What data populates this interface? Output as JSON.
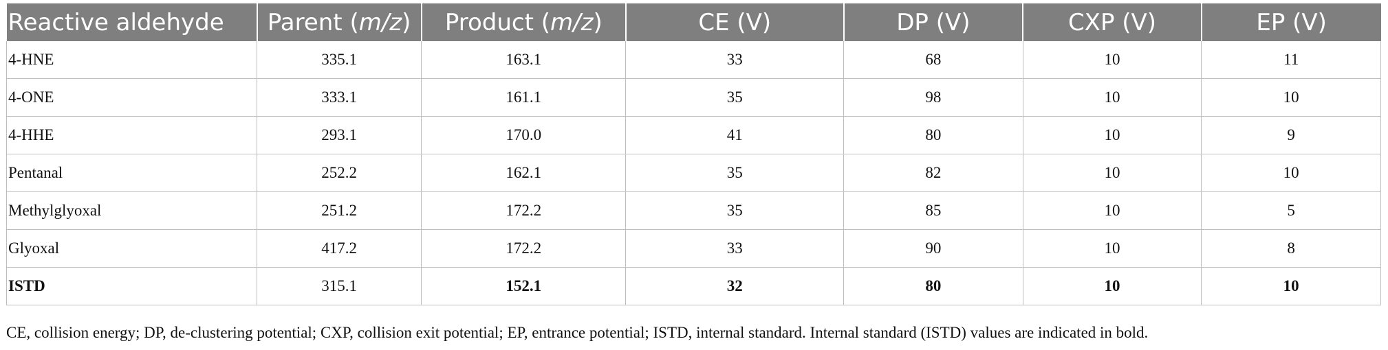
{
  "table": {
    "headers": [
      {
        "pre": "Reactive aldehyde",
        "ital": "",
        "post": ""
      },
      {
        "pre": "Parent (",
        "ital": "m/z",
        "post": ")"
      },
      {
        "pre": "Product (",
        "ital": "m/z",
        "post": ")"
      },
      {
        "pre": "CE (V)",
        "ital": "",
        "post": ""
      },
      {
        "pre": "DP (V)",
        "ital": "",
        "post": ""
      },
      {
        "pre": "CXP (V)",
        "ital": "",
        "post": ""
      },
      {
        "pre": "EP (V)",
        "ital": "",
        "post": ""
      }
    ],
    "rows": [
      [
        "4-HNE",
        "335.1",
        "163.1",
        "33",
        "68",
        "10",
        "11"
      ],
      [
        "4-ONE",
        "333.1",
        "161.1",
        "35",
        "98",
        "10",
        "10"
      ],
      [
        "4-HHE",
        "293.1",
        "170.0",
        "41",
        "80",
        "10",
        "9"
      ],
      [
        "Pentanal",
        "252.2",
        "162.1",
        "35",
        "82",
        "10",
        "10"
      ],
      [
        "Methylglyoxal",
        "251.2",
        "172.2",
        "35",
        "85",
        "10",
        "5"
      ],
      [
        "Glyoxal",
        "417.2",
        "172.2",
        "33",
        "90",
        "10",
        "8"
      ],
      [
        "ISTD",
        "315.1",
        "152.1",
        "32",
        "80",
        "10",
        "10"
      ]
    ]
  },
  "footnote": "CE, collision energy; DP, de-clustering potential; CXP, collision exit potential; EP, entrance potential; ISTD, internal standard. Internal standard (ISTD) values are indicated in bold."
}
